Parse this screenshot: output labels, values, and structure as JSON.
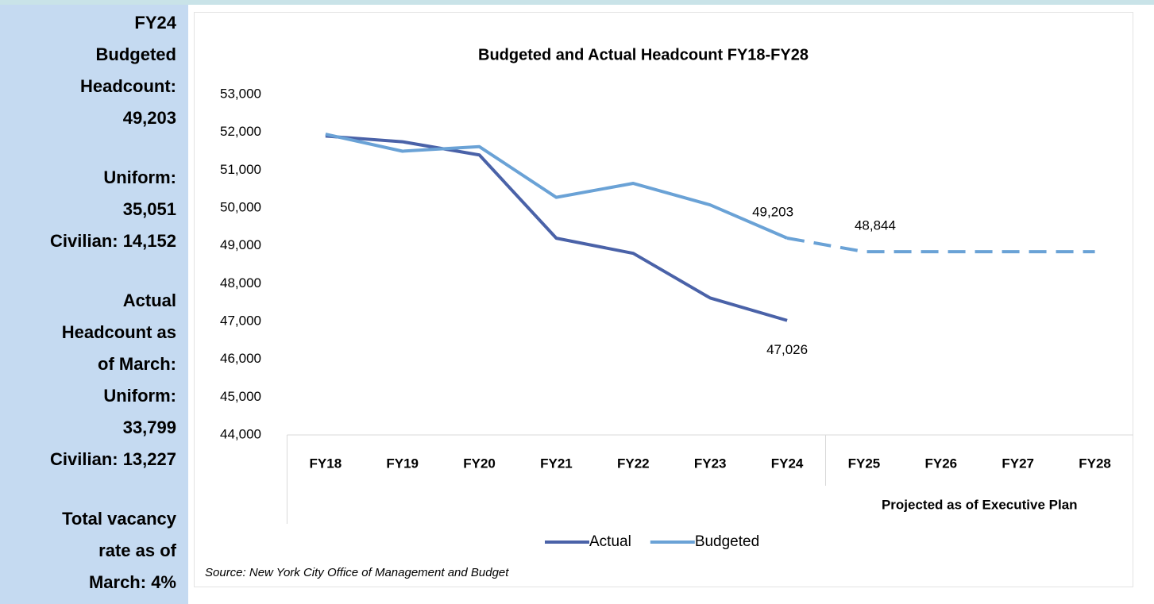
{
  "sidebar": {
    "blocks": [
      [
        "FY24",
        "Budgeted",
        "Headcount:",
        "49,203"
      ],
      [
        "Uniform:",
        "35,051",
        "Civilian: 14,152"
      ],
      [
        "Actual",
        "Headcount as",
        "of March:",
        "Uniform:",
        "33,799",
        "Civilian: 13,227"
      ],
      [
        "Total vacancy",
        "rate as of",
        "March: 4%"
      ]
    ]
  },
  "chart_data": {
    "type": "line",
    "title": "Budgeted and Actual Headcount FY18-FY28",
    "categories": [
      "FY18",
      "FY19",
      "FY20",
      "FY21",
      "FY22",
      "FY23",
      "FY24",
      "FY25",
      "FY26",
      "FY27",
      "FY28"
    ],
    "category_group": {
      "label": "Projected as of Executive Plan",
      "from": "FY25"
    },
    "series": [
      {
        "name": "Actual",
        "color": "#4a62a8",
        "values": [
          51900,
          51750,
          51400,
          49200,
          48800,
          47620,
          47026,
          null,
          null,
          null,
          null
        ],
        "value_labels": [
          null,
          null,
          null,
          null,
          null,
          null,
          "47,026",
          null,
          null,
          null,
          null
        ]
      },
      {
        "name": "Budgeted",
        "color": "#6aa2d6",
        "values": [
          51950,
          51500,
          51620,
          50280,
          50650,
          50080,
          49203,
          48844,
          48844,
          48844,
          48844
        ],
        "value_labels": [
          null,
          null,
          null,
          null,
          null,
          null,
          "49,203",
          "48,844",
          null,
          null,
          null
        ]
      }
    ],
    "ylim": [
      44000,
      53000
    ],
    "yticks": [
      {
        "value": 44000,
        "label": "44,000"
      },
      {
        "value": 45000,
        "label": "45,000"
      },
      {
        "value": 46000,
        "label": "46,000"
      },
      {
        "value": 47000,
        "label": "47,000"
      },
      {
        "value": 48000,
        "label": "48,000"
      },
      {
        "value": 49000,
        "label": "49,000"
      },
      {
        "value": 50000,
        "label": "50,000"
      },
      {
        "value": 51000,
        "label": "51,000"
      },
      {
        "value": 52000,
        "label": "52,000"
      },
      {
        "value": 53000,
        "label": "53,000"
      }
    ],
    "grid": false,
    "legend": "bottom",
    "source": "Source: New York City Office of Management and Budget"
  }
}
